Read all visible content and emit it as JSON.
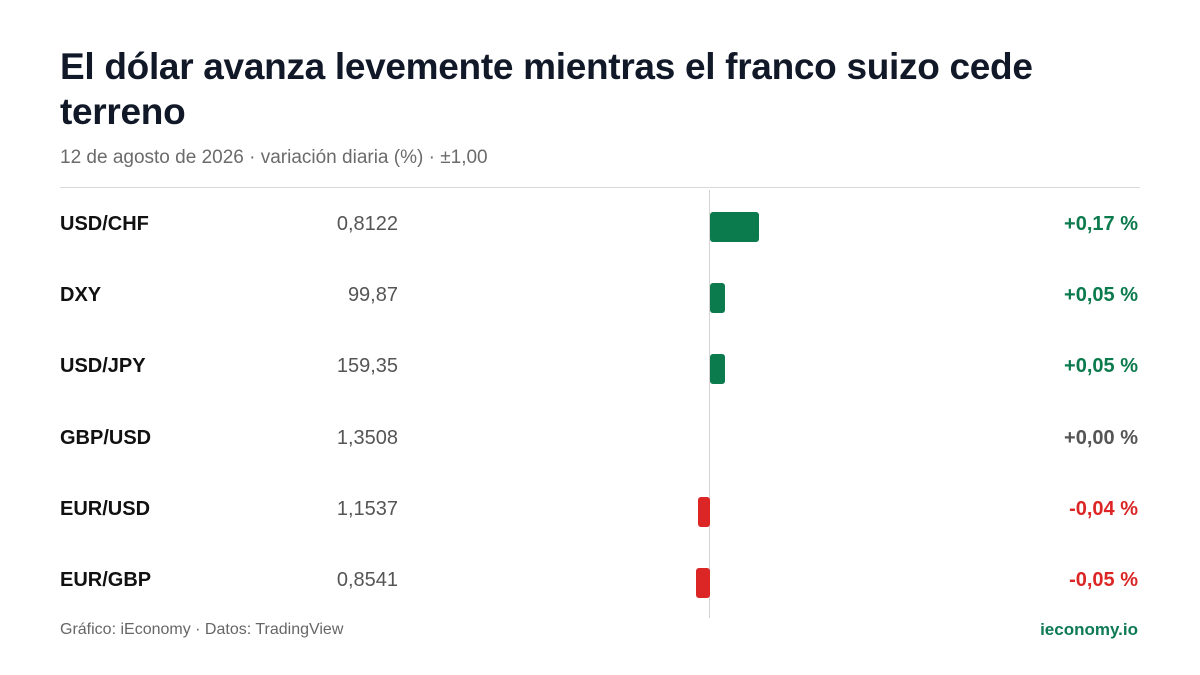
{
  "title": "El dólar avanza levemente mientras el franco suizo cede terreno",
  "subtitle": "12 de agosto de 2026 · variación diaria (%) · ±1,00",
  "footer": {
    "source": "Gráfico: iEconomy · Datos: TradingView",
    "brand": "ieconomy.io"
  },
  "colors": {
    "positive": "#0b7a4c",
    "negative": "#dc2626",
    "neutral": "#555555",
    "brand": "#0d7a55"
  },
  "chart_data": {
    "type": "bar",
    "orientation": "horizontal",
    "scale_range": [
      -1,
      1
    ],
    "rows": [
      {
        "symbol": "USD/CHF",
        "price": "0,8122",
        "change": 0.17,
        "change_label": "+0,17 %"
      },
      {
        "symbol": "DXY",
        "price": "99,87",
        "change": 0.05,
        "change_label": "+0,05 %"
      },
      {
        "symbol": "USD/JPY",
        "price": "159,35",
        "change": 0.05,
        "change_label": "+0,05 %"
      },
      {
        "symbol": "GBP/USD",
        "price": "1,3508",
        "change": 0.0,
        "change_label": "+0,00 %"
      },
      {
        "symbol": "EUR/USD",
        "price": "1,1537",
        "change": -0.04,
        "change_label": "-0,04 %"
      },
      {
        "symbol": "EUR/GBP",
        "price": "0,8541",
        "change": -0.05,
        "change_label": "-0,05 %"
      }
    ]
  }
}
